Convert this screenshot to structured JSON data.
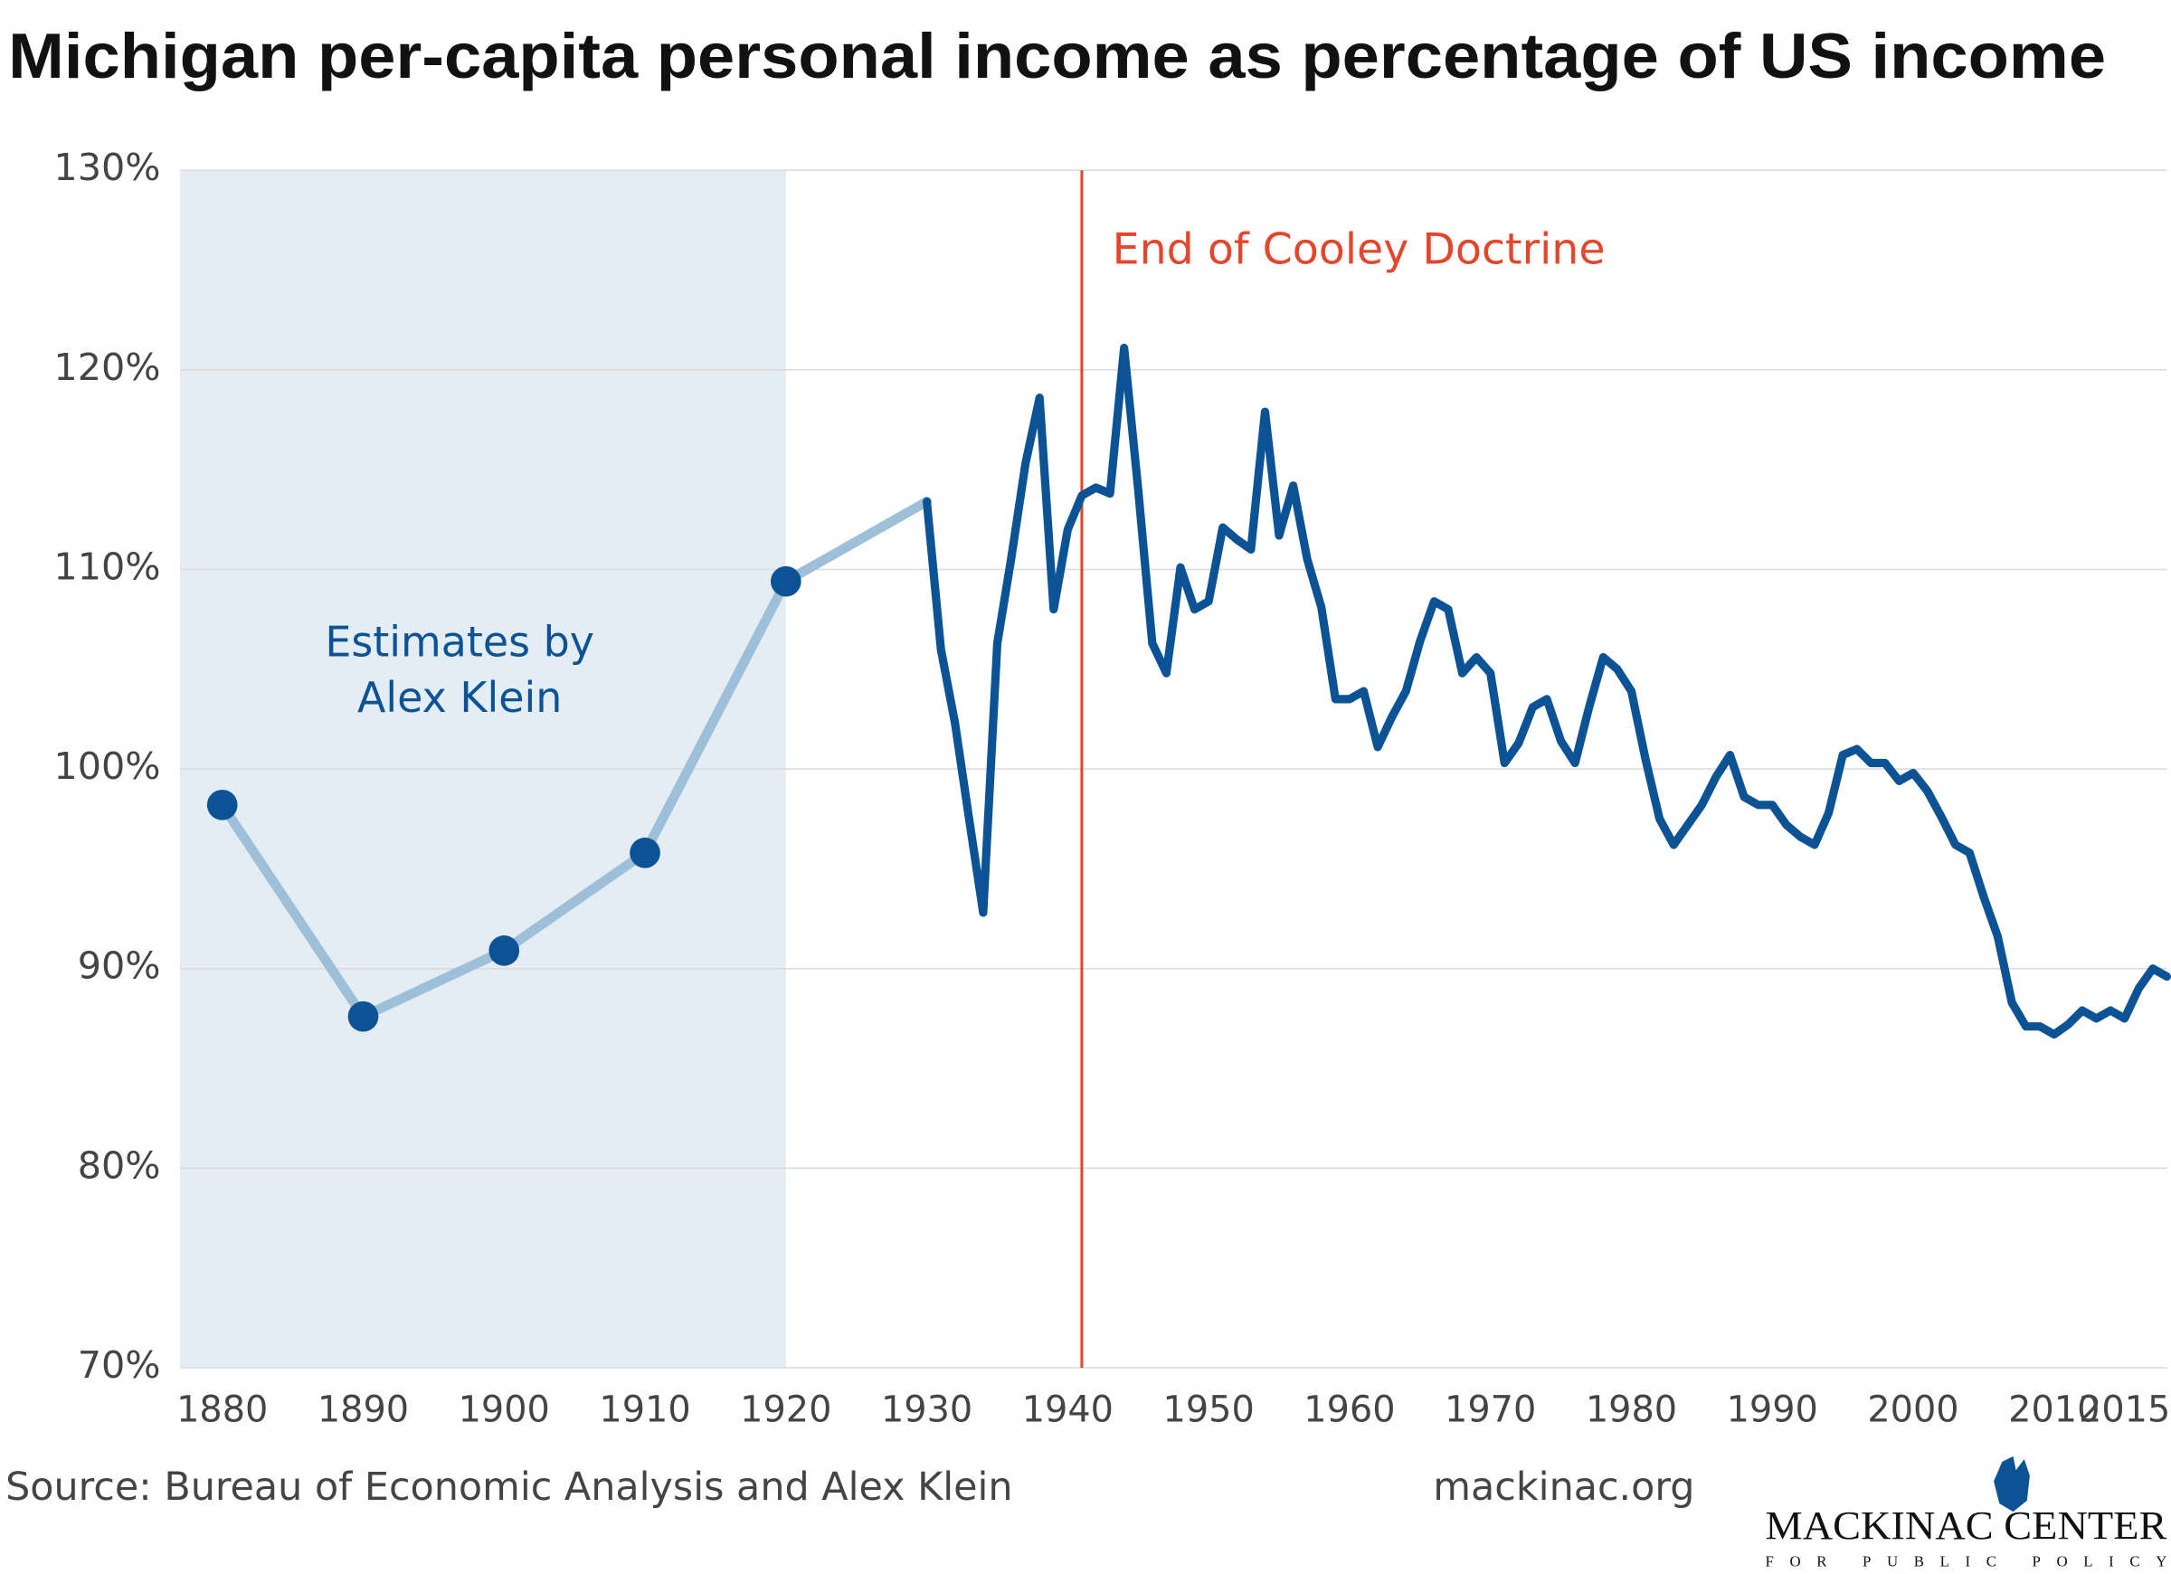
{
  "chart_data": {
    "type": "line",
    "title": "Michigan per-capita personal income as percentage of US income",
    "series": [
      {
        "name": "Estimates by Alex Klein",
        "color": "#9dbfd8",
        "markers": true,
        "marker_color": "#0b5394",
        "x": [
          1880,
          1890,
          1900,
          1910,
          1920
        ],
        "values": [
          98.2,
          87.6,
          90.9,
          95.8,
          109.4
        ]
      },
      {
        "name": "Bureau of Economic Analysis",
        "color": "#0b5394",
        "markers": false,
        "x": [
          1930,
          1931,
          1932,
          1933,
          1934,
          1935,
          1936,
          1937,
          1938,
          1939,
          1940,
          1941,
          1942,
          1943,
          1944,
          1945,
          1946,
          1947,
          1948,
          1949,
          1950,
          1951,
          1952,
          1953,
          1954,
          1955,
          1956,
          1957,
          1958,
          1959,
          1960,
          1961,
          1962,
          1963,
          1964,
          1965,
          1966,
          1967,
          1968,
          1969,
          1970,
          1971,
          1972,
          1973,
          1974,
          1975,
          1976,
          1977,
          1978,
          1979,
          1980,
          1981,
          1982,
          1983,
          1984,
          1985,
          1986,
          1987,
          1988,
          1989,
          1990,
          1991,
          1992,
          1993,
          1994,
          1995,
          1996,
          1997,
          1998,
          1999,
          2000,
          2001,
          2002,
          2003,
          2004,
          2005,
          2006,
          2007,
          2008,
          2009,
          2010,
          2011,
          2012,
          2013,
          2014,
          2015,
          2016,
          2017,
          2018
        ],
        "values": [
          113.4,
          106.0,
          102.3,
          97.5,
          92.8,
          106.3,
          110.6,
          115.3,
          118.6,
          108.0,
          112.0,
          113.7,
          114.1,
          113.8,
          121.1,
          114.0,
          106.3,
          104.8,
          110.1,
          108.0,
          108.4,
          112.1,
          111.5,
          111.0,
          117.9,
          111.7,
          114.2,
          110.5,
          108.1,
          103.5,
          103.5,
          103.9,
          101.1,
          102.6,
          103.9,
          106.4,
          108.4,
          108.0,
          104.8,
          105.6,
          104.8,
          100.3,
          101.3,
          103.1,
          103.5,
          101.4,
          100.3,
          103.1,
          105.6,
          105.0,
          103.9,
          100.5,
          97.5,
          96.2,
          97.2,
          98.2,
          99.6,
          100.7,
          98.6,
          98.2,
          98.2,
          97.2,
          96.6,
          96.2,
          97.8,
          100.7,
          101.0,
          100.3,
          100.3,
          99.4,
          99.8,
          98.9,
          97.6,
          96.2,
          95.8,
          93.6,
          91.6,
          88.3,
          87.1,
          87.1,
          86.7,
          87.2,
          87.9,
          87.5,
          87.9,
          87.5,
          89.0,
          90.0,
          89.6
        ]
      }
    ],
    "xlim": [
      1877,
      2018
    ],
    "xticks": [
      1880,
      1890,
      1900,
      1910,
      1920,
      1930,
      1940,
      1950,
      1960,
      1970,
      1980,
      1990,
      2000,
      2010,
      2015
    ],
    "ylim": [
      70,
      130
    ],
    "yticks": [
      {
        "value": 70,
        "label": "70%"
      },
      {
        "value": 80,
        "label": "80%"
      },
      {
        "value": 90,
        "label": "90%"
      },
      {
        "value": 100,
        "label": "100%"
      },
      {
        "value": 110,
        "label": "110%"
      },
      {
        "value": 120,
        "label": "120%"
      },
      {
        "value": 130,
        "label": "130%"
      }
    ],
    "grid": true,
    "shaded_range": [
      1877,
      1920
    ],
    "shaded_label": [
      "Estimates by",
      "Alex Klein"
    ],
    "vline": 1941,
    "vline_color": "#e4462c",
    "vline_label": "End of Cooley Doctrine",
    "source": "Source: Bureau of Economic Analysis and Alex Klein",
    "website": "mackinac.org",
    "logo": {
      "name": "MACKINAC CENTER",
      "tagline": "FOR PUBLIC POLICY"
    }
  }
}
